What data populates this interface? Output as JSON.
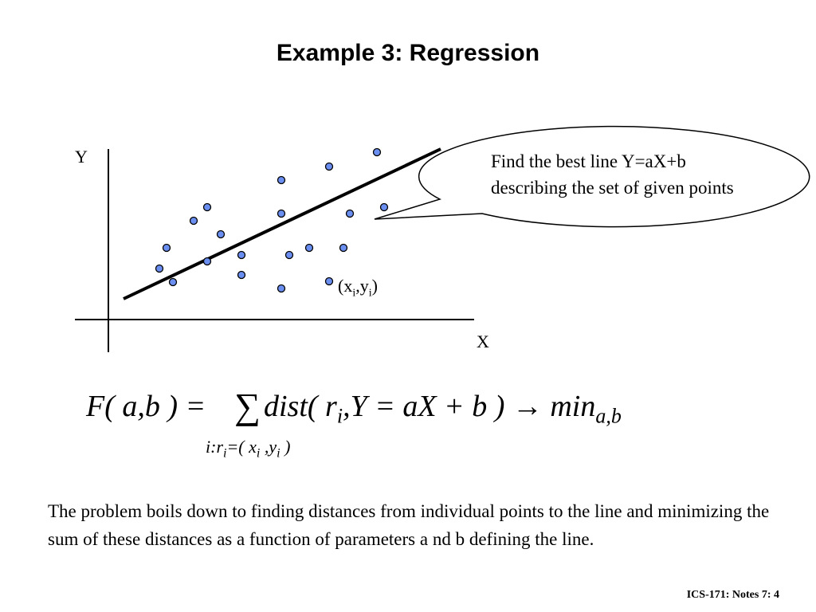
{
  "title": "Example 3: Regression",
  "figure": {
    "y_axis_label": "Y",
    "x_axis_label": "X",
    "point_label_main": "(x",
    "point_label_sub1": "i",
    "point_label_mid": ",y",
    "point_label_sub2": "i",
    "point_label_end": ")",
    "point_color": "#6b8ff0",
    "callout_line1": "Find the best line Y=aX+b",
    "callout_line2": "describing the set of given points"
  },
  "formula": {
    "lhs": "F( a,b ) =",
    "sum_symbol": "∑",
    "body": "dist( r",
    "body_sub": "i",
    "body_rest": ",Y = aX + b ) → min",
    "min_sub": "a,b",
    "index_a": "i:r",
    "index_sub1": "i",
    "index_b": "=( x",
    "index_sub2": "i",
    "index_c": " ,y",
    "index_sub3": "i",
    "index_d": " )"
  },
  "body_text": "The problem boils down to finding distances from individual points to the line and minimizing the sum of these distances as a function of parameters a nd b defining the line.",
  "footer": "ICS-171: Notes 7: 4"
}
